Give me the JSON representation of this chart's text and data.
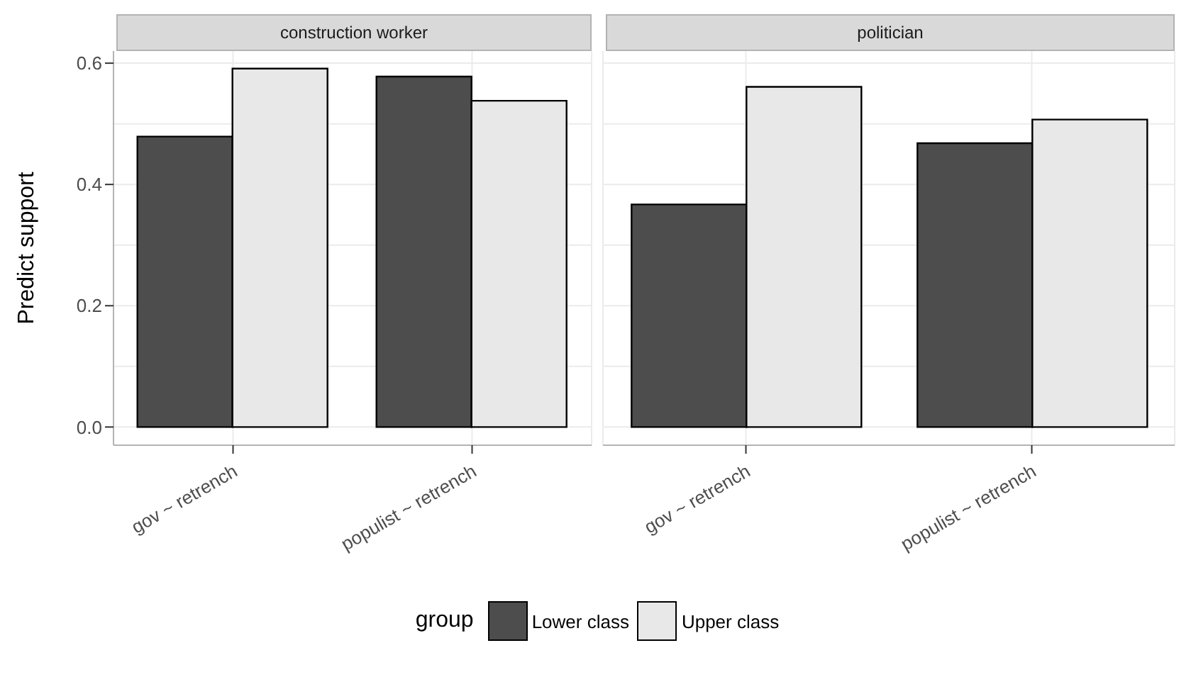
{
  "chart_data": [
    {
      "type": "bar",
      "title": "construction worker",
      "ylabel": "Predict support",
      "categories": [
        "gov ~ retrench",
        "populist ~ retrench"
      ],
      "series": [
        {
          "name": "Lower class",
          "color": "#4d4d4d",
          "values": [
            0.479,
            0.578
          ]
        },
        {
          "name": "Upper class",
          "color": "#e8e8e8",
          "values": [
            0.591,
            0.538
          ]
        }
      ],
      "ylim": [
        -0.03,
        0.62
      ],
      "yticks": [
        {
          "value": 0,
          "label": "0.0"
        },
        0.2,
        0.4,
        0.6
      ],
      "grid": true,
      "legend": "bottom",
      "legend_title": "group"
    },
    {
      "type": "bar",
      "title": "politician",
      "categories": [
        "gov ~ retrench",
        "populist ~ retrench"
      ],
      "series": [
        {
          "color": "#4d4d4d",
          "values": [
            0.367,
            0.468
          ]
        },
        {
          "color": "#e8e8e8",
          "values": [
            0.561,
            0.507
          ]
        }
      ],
      "ylim": [
        -0.03,
        0.62
      ],
      "yticks": [
        0,
        0.2,
        0.4,
        0.6
      ],
      "grid": true,
      "tick_labels": "x"
    }
  ]
}
